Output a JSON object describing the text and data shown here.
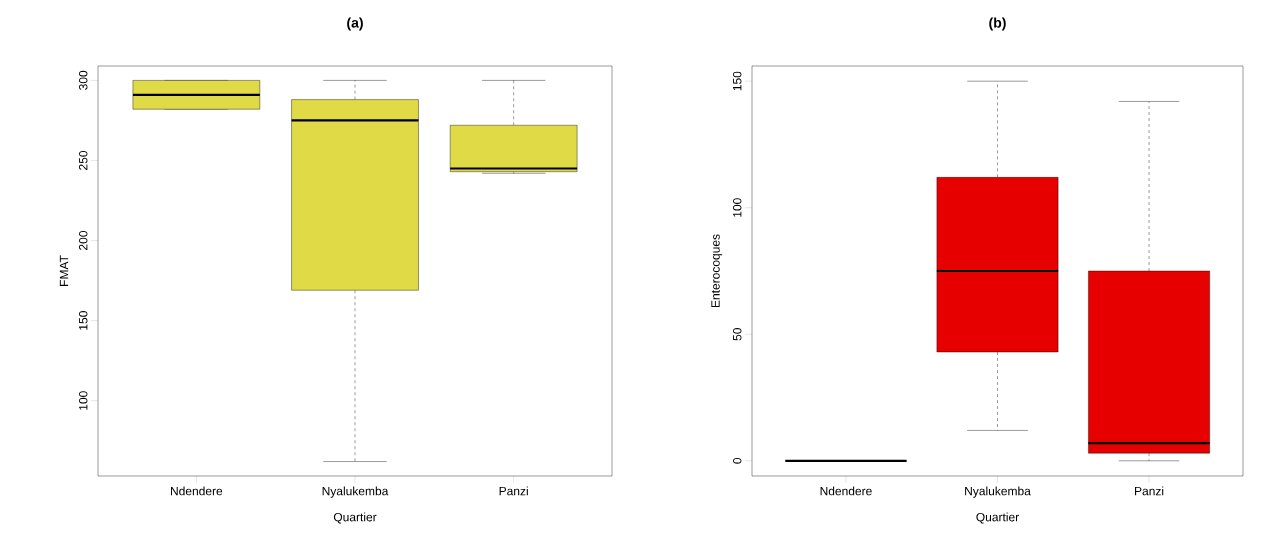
{
  "chart_data": [
    {
      "type": "box",
      "title": "(a)",
      "xlabel": "Quartier",
      "ylabel": "FMAT",
      "categories": [
        "Ndendere",
        "Nyalukemba",
        "Panzi"
      ],
      "series": [
        {
          "color": "#e0da46",
          "boxes": [
            {
              "low": 282,
              "q1": 282,
              "median": 291,
              "q3": 300,
              "high": 300
            },
            {
              "low": 62,
              "q1": 169,
              "median": 275,
              "q3": 288,
              "high": 300
            },
            {
              "low": 242,
              "q1": 243,
              "median": 245,
              "q3": 272,
              "high": 300
            }
          ]
        }
      ],
      "ylim": [
        53,
        309
      ],
      "yticks": [
        100,
        150,
        200,
        250,
        300
      ]
    },
    {
      "type": "box",
      "title": "(b)",
      "xlabel": "Quartier",
      "ylabel": "Enterocoques",
      "categories": [
        "Ndendere",
        "Nyalukemba",
        "Panzi"
      ],
      "series": [
        {
          "color": "#e60000",
          "boxes": [
            {
              "low": 0,
              "q1": 0,
              "median": 0,
              "q3": 0,
              "high": 0
            },
            {
              "low": 12,
              "q1": 43,
              "median": 75,
              "q3": 112,
              "high": 150
            },
            {
              "low": 0,
              "q1": 3,
              "median": 7,
              "q3": 75,
              "high": 142
            }
          ]
        }
      ],
      "ylim": [
        -6,
        156
      ],
      "yticks": [
        0,
        50,
        100,
        150
      ]
    }
  ]
}
